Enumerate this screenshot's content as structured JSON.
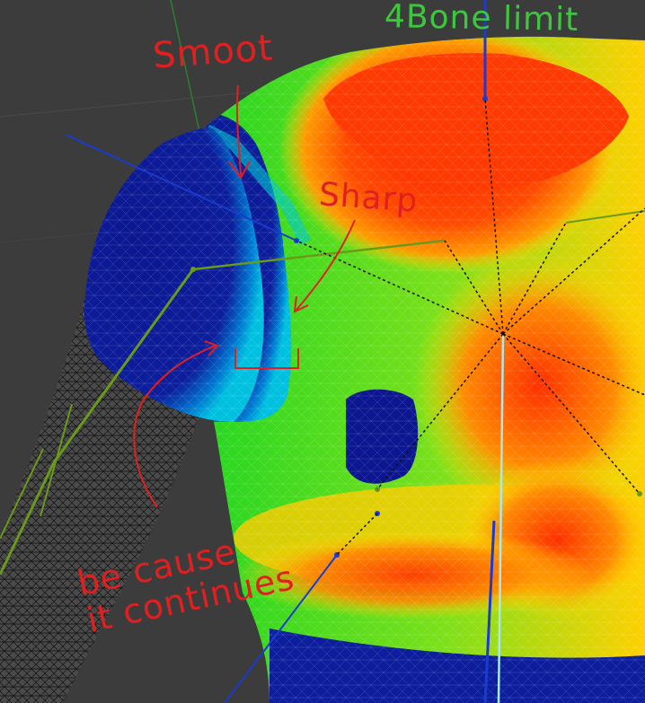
{
  "viewport": {
    "background": "#3c3c3c",
    "weight_gradient_colors": [
      "#0a1a9a",
      "#00c8ff",
      "#22dd22",
      "#ffee00",
      "#ff2a00"
    ]
  },
  "annotations": {
    "bone_limit": {
      "text": "4Bone limit",
      "color": "#3cc83c"
    },
    "smooth": {
      "text": "Smoot",
      "color": "#e02020"
    },
    "sharp": {
      "text": "Sharp",
      "color": "#e02020"
    },
    "because_line1": {
      "text": "be cause",
      "color": "#e02020"
    },
    "because_line2": {
      "text": "it continues",
      "color": "#e02020"
    }
  }
}
